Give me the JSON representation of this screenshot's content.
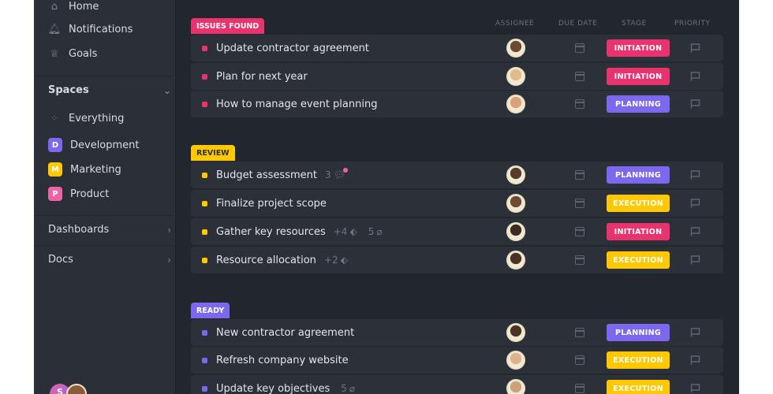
{
  "sidebar": {
    "nav": [
      {
        "label": "Home",
        "icon": "home-icon"
      },
      {
        "label": "Notifications",
        "icon": "bell-icon"
      },
      {
        "label": "Goals",
        "icon": "trophy-icon"
      }
    ],
    "spaces_label": "Spaces",
    "everything": "Everything",
    "spaces": [
      {
        "letter": "D",
        "label": "Development",
        "color": "#7b68ee"
      },
      {
        "letter": "M",
        "label": "Marketing",
        "color": "#ffc800"
      },
      {
        "letter": "P",
        "label": "Product",
        "color": "#f062a8"
      }
    ],
    "dashboards": "Dashboards",
    "docs": "Docs",
    "user_initial": "S"
  },
  "columns": {
    "assignee": "ASSIGNEE",
    "due": "DUE DATE",
    "stage": "STAGE",
    "priority": "PRIORITY"
  },
  "stage_colors": {
    "INITIATION": "#e8336f",
    "PLANNING": "#7b68ee",
    "EXECUTION": "#ffc800"
  },
  "groups": [
    {
      "label": "ISSUES FOUND",
      "color": "#e8336f",
      "text_color": "#ffffff",
      "tasks": [
        {
          "name": "Update contractor agreement",
          "stage": "INITIATION",
          "meta": ""
        },
        {
          "name": "Plan for next year",
          "stage": "INITIATION",
          "meta": ""
        },
        {
          "name": "How to manage event planning",
          "stage": "PLANNING",
          "meta": ""
        }
      ]
    },
    {
      "label": "REVIEW",
      "color": "#ffc800",
      "text_color": "#2b2f36",
      "tasks": [
        {
          "name": "Budget assessment",
          "stage": "PLANNING",
          "comments": "3"
        },
        {
          "name": "Finalize project scope",
          "stage": "EXECUTION"
        },
        {
          "name": "Gather key resources",
          "stage": "INITIATION",
          "tags": "+4",
          "attachments": "5"
        },
        {
          "name": "Resource allocation",
          "stage": "EXECUTION",
          "tags": "+2"
        }
      ]
    },
    {
      "label": "READY",
      "color": "#7b68ee",
      "text_color": "#ffffff",
      "tasks": [
        {
          "name": "New contractor agreement",
          "stage": "PLANNING"
        },
        {
          "name": "Refresh company website",
          "stage": "EXECUTION"
        },
        {
          "name": "Update key objectives",
          "stage": "EXECUTION",
          "attachments": "5"
        }
      ]
    }
  ]
}
